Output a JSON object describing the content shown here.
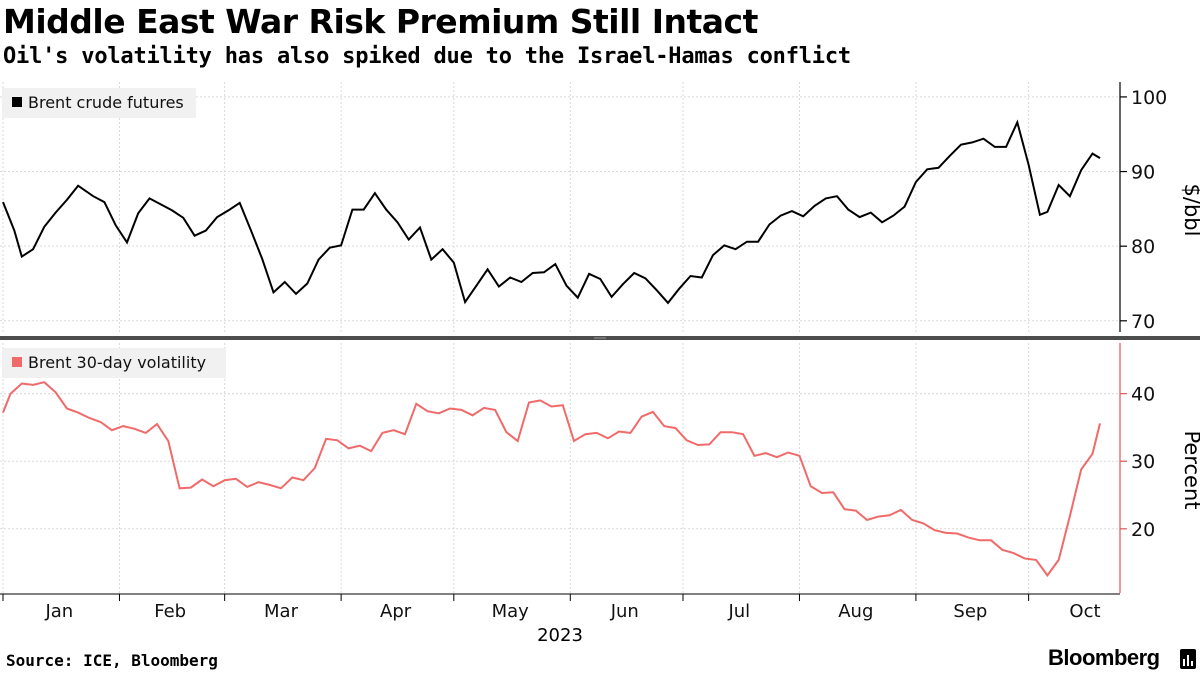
{
  "title": "Middle East War Risk Premium Still Intact",
  "subtitle": "Oil's volatility has also spiked due to the Israel-Hamas conflict",
  "source": "Source: ICE, Bloomberg",
  "brand": "Bloomberg",
  "colors": {
    "brent": "#000000",
    "volatility": "#f06a6a",
    "grid": "#d9d9d9",
    "divider": "#4d4d4d"
  },
  "chart_data": [
    {
      "type": "line",
      "series": [
        {
          "name": "Brent crude futures",
          "color": "#000000",
          "x": [
            "2023-01-01",
            "2023-01-04",
            "2023-01-06",
            "2023-01-09",
            "2023-01-12",
            "2023-01-15",
            "2023-01-18",
            "2023-01-21",
            "2023-01-25",
            "2023-01-28",
            "2023-01-31",
            "2023-02-03",
            "2023-02-06",
            "2023-02-09",
            "2023-02-12",
            "2023-02-15",
            "2023-02-18",
            "2023-02-21",
            "2023-02-24",
            "2023-02-27",
            "2023-03-02",
            "2023-03-05",
            "2023-03-08",
            "2023-03-11",
            "2023-03-14",
            "2023-03-17",
            "2023-03-20",
            "2023-03-23",
            "2023-03-26",
            "2023-03-29",
            "2023-04-01",
            "2023-04-04",
            "2023-04-07",
            "2023-04-10",
            "2023-04-13",
            "2023-04-16",
            "2023-04-19",
            "2023-04-22",
            "2023-04-25",
            "2023-04-28",
            "2023-05-01",
            "2023-05-04",
            "2023-05-07",
            "2023-05-10",
            "2023-05-13",
            "2023-05-16",
            "2023-05-19",
            "2023-05-22",
            "2023-05-25",
            "2023-05-28",
            "2023-05-31",
            "2023-06-03",
            "2023-06-06",
            "2023-06-09",
            "2023-06-12",
            "2023-06-15",
            "2023-06-18",
            "2023-06-21",
            "2023-06-24",
            "2023-06-27",
            "2023-06-30",
            "2023-07-03",
            "2023-07-06",
            "2023-07-09",
            "2023-07-12",
            "2023-07-15",
            "2023-07-18",
            "2023-07-21",
            "2023-07-24",
            "2023-07-27",
            "2023-07-30",
            "2023-08-02",
            "2023-08-05",
            "2023-08-08",
            "2023-08-11",
            "2023-08-14",
            "2023-08-17",
            "2023-08-20",
            "2023-08-23",
            "2023-08-26",
            "2023-08-29",
            "2023-09-01",
            "2023-09-04",
            "2023-09-07",
            "2023-09-10",
            "2023-09-13",
            "2023-09-16",
            "2023-09-19",
            "2023-09-22",
            "2023-09-25",
            "2023-09-28",
            "2023-10-01",
            "2023-10-04",
            "2023-10-06",
            "2023-10-09",
            "2023-10-12",
            "2023-10-15",
            "2023-10-18",
            "2023-10-20"
          ],
          "values": [
            85.9,
            82.1,
            78.6,
            79.6,
            82.6,
            84.5,
            86.2,
            88.1,
            86.7,
            85.9,
            82.8,
            80.5,
            84.4,
            86.4,
            85.6,
            84.8,
            83.8,
            81.4,
            82.1,
            83.9,
            84.8,
            85.8,
            82.1,
            78.3,
            73.8,
            75.2,
            73.6,
            75.0,
            78.2,
            79.8,
            80.1,
            84.9,
            84.9,
            87.1,
            84.9,
            83.2,
            80.9,
            82.5,
            78.2,
            79.6,
            77.8,
            72.5,
            74.7,
            76.9,
            74.6,
            75.8,
            75.2,
            76.4,
            76.5,
            77.6,
            74.7,
            73.1,
            76.3,
            75.6,
            73.2,
            74.9,
            76.4,
            75.7,
            74.1,
            72.4,
            74.3,
            76.0,
            75.8,
            78.8,
            80.1,
            79.6,
            80.6,
            80.6,
            82.9,
            84.1,
            84.7,
            84.0,
            85.4,
            86.4,
            86.7,
            84.9,
            83.9,
            84.5,
            83.2,
            84.1,
            85.3,
            88.6,
            90.3,
            90.5,
            92.1,
            93.6,
            93.9,
            94.4,
            93.3,
            93.3,
            96.6,
            90.9,
            84.2,
            84.6,
            88.2,
            86.7,
            90.2,
            92.4,
            91.8
          ]
        }
      ],
      "y_ticks": [
        70,
        80,
        90,
        100
      ],
      "ylim": [
        68.5,
        102
      ],
      "ylabel": "$/bbl",
      "legend": "top-left"
    },
    {
      "type": "line",
      "series": [
        {
          "name": "Brent 30-day volatility",
          "color": "#f06a6a",
          "x": [
            "2023-01-01",
            "2023-01-03",
            "2023-01-06",
            "2023-01-09",
            "2023-01-12",
            "2023-01-15",
            "2023-01-18",
            "2023-01-21",
            "2023-01-24",
            "2023-01-27",
            "2023-01-30",
            "2023-02-02",
            "2023-02-05",
            "2023-02-08",
            "2023-02-11",
            "2023-02-14",
            "2023-02-17",
            "2023-02-20",
            "2023-02-23",
            "2023-02-26",
            "2023-03-01",
            "2023-03-04",
            "2023-03-07",
            "2023-03-10",
            "2023-03-13",
            "2023-03-16",
            "2023-03-19",
            "2023-03-22",
            "2023-03-25",
            "2023-03-28",
            "2023-03-31",
            "2023-04-03",
            "2023-04-06",
            "2023-04-09",
            "2023-04-12",
            "2023-04-15",
            "2023-04-18",
            "2023-04-21",
            "2023-04-24",
            "2023-04-27",
            "2023-04-30",
            "2023-05-03",
            "2023-05-06",
            "2023-05-09",
            "2023-05-12",
            "2023-05-15",
            "2023-05-18",
            "2023-05-21",
            "2023-05-24",
            "2023-05-27",
            "2023-05-30",
            "2023-06-02",
            "2023-06-05",
            "2023-06-08",
            "2023-06-11",
            "2023-06-14",
            "2023-06-17",
            "2023-06-20",
            "2023-06-23",
            "2023-06-26",
            "2023-06-29",
            "2023-07-02",
            "2023-07-05",
            "2023-07-08",
            "2023-07-11",
            "2023-07-14",
            "2023-07-17",
            "2023-07-20",
            "2023-07-23",
            "2023-07-26",
            "2023-07-29",
            "2023-08-01",
            "2023-08-04",
            "2023-08-07",
            "2023-08-10",
            "2023-08-13",
            "2023-08-16",
            "2023-08-19",
            "2023-08-22",
            "2023-08-25",
            "2023-08-28",
            "2023-08-31",
            "2023-09-03",
            "2023-09-06",
            "2023-09-09",
            "2023-09-12",
            "2023-09-15",
            "2023-09-18",
            "2023-09-21",
            "2023-09-24",
            "2023-09-27",
            "2023-09-30",
            "2023-10-03",
            "2023-10-06",
            "2023-10-09",
            "2023-10-12",
            "2023-10-15",
            "2023-10-18",
            "2023-10-20"
          ],
          "values": [
            37.2,
            40.0,
            41.5,
            41.3,
            41.7,
            40.2,
            37.8,
            37.2,
            36.4,
            35.8,
            34.6,
            35.2,
            34.8,
            34.2,
            35.5,
            33.0,
            26.0,
            26.1,
            27.3,
            26.3,
            27.2,
            27.4,
            26.2,
            26.9,
            26.5,
            26.0,
            27.6,
            27.2,
            29.0,
            33.3,
            33.1,
            31.9,
            32.3,
            31.5,
            34.2,
            34.6,
            34.0,
            38.5,
            37.4,
            37.1,
            37.8,
            37.6,
            36.8,
            37.9,
            37.6,
            34.3,
            33.0,
            38.7,
            39.0,
            38.1,
            38.3,
            33.0,
            34.0,
            34.2,
            33.4,
            34.4,
            34.2,
            36.6,
            37.3,
            35.2,
            34.9,
            33.1,
            32.4,
            32.5,
            34.3,
            34.3,
            34.0,
            30.8,
            31.2,
            30.6,
            31.3,
            30.8,
            26.3,
            25.3,
            25.4,
            22.9,
            22.7,
            21.3,
            21.8,
            22.0,
            22.8,
            21.3,
            20.8,
            19.8,
            19.4,
            19.3,
            18.7,
            18.3,
            18.3,
            16.9,
            16.4,
            15.6,
            15.4,
            13.1,
            15.4,
            21.9,
            28.8,
            31.1,
            35.6
          ]
        }
      ],
      "y_ticks": [
        20,
        30,
        40
      ],
      "ylim": [
        10.5,
        47.5
      ],
      "ylabel": "Percent",
      "legend": "top-left"
    }
  ],
  "x_axis": {
    "months": [
      {
        "label": "Jan",
        "date": "2023-01-16"
      },
      {
        "label": "Feb",
        "date": "2023-02-14.5"
      },
      {
        "label": "Mar",
        "date": "2023-03-16"
      },
      {
        "label": "Apr",
        "date": "2023-04-15.5"
      },
      {
        "label": "May",
        "date": "2023-05-16"
      },
      {
        "label": "Jun",
        "date": "2023-06-15.5"
      },
      {
        "label": "Jul",
        "date": "2023-07-16"
      },
      {
        "label": "Aug",
        "date": "2023-08-16"
      },
      {
        "label": "Sep",
        "date": "2023-09-15.5"
      },
      {
        "label": "Oct",
        "date": "2023-10-16"
      }
    ],
    "year": "2023"
  }
}
